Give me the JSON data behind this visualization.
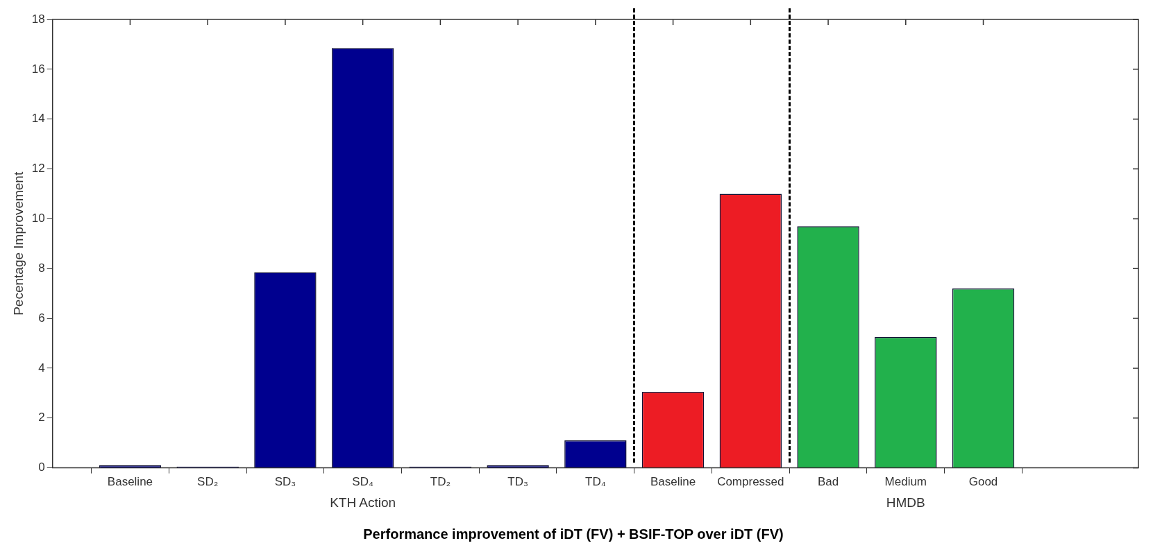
{
  "chart_data": {
    "type": "bar",
    "title": "Performance improvement of iDT (FV) + BSIF-TOP over iDT (FV)",
    "ylabel": "Pecentage Improvement",
    "categories": [
      "Baseline",
      "SD₂",
      "SD₃",
      "SD₄",
      "TD₂",
      "TD₃",
      "TD₄",
      "Baseline",
      "Compressed",
      "Bad",
      "Medium",
      "Good"
    ],
    "values": [
      0.1,
      0.05,
      7.85,
      16.85,
      0.05,
      0.1,
      1.1,
      3.05,
      11.0,
      9.7,
      5.25,
      7.2
    ],
    "colors": [
      "#00008f",
      "#00008f",
      "#00008f",
      "#00008f",
      "#00008f",
      "#00008f",
      "#00008f",
      "#ed1c24",
      "#ed1c24",
      "#22b14c",
      "#22b14c",
      "#22b14c"
    ],
    "ylim": [
      0,
      18
    ],
    "yticks": [
      0,
      2,
      4,
      6,
      8,
      10,
      12,
      14,
      16,
      18
    ],
    "annotations": [
      "KTH Action",
      "HMDB"
    ]
  }
}
